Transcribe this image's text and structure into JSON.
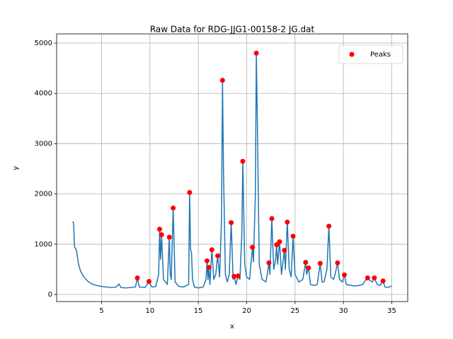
{
  "chart_data": {
    "type": "line",
    "title": "Raw Data for RDG-JJG1-00158-2 JG.dat",
    "x_label": "x",
    "y_label": "y",
    "xlim": [
      0.35,
      36.65
    ],
    "ylim": [
      -140,
      5183
    ],
    "xticks": [
      5,
      10,
      15,
      20,
      25,
      30,
      35
    ],
    "yticks": [
      0,
      1000,
      2000,
      3000,
      4000,
      5000
    ],
    "grid": true,
    "legend": "upper right",
    "series": [
      {
        "type": "line",
        "color": "#1f77b4",
        "x": [
          2.0,
          2.1,
          2.2,
          2.4,
          2.6,
          2.8,
          3.0,
          3.3,
          3.6,
          4.0,
          4.5,
          5.0,
          5.5,
          6.0,
          6.5,
          6.8,
          7.0,
          7.5,
          8.0,
          8.5,
          8.7,
          8.9,
          9.5,
          9.9,
          10.2,
          10.6,
          10.9,
          11.0,
          11.1,
          11.2,
          11.4,
          11.8,
          12.0,
          12.1,
          12.2,
          12.4,
          12.6,
          13.0,
          13.5,
          14.0,
          14.1,
          14.2,
          14.3,
          14.4,
          14.6,
          15.0,
          15.5,
          15.8,
          15.9,
          16.0,
          16.1,
          16.2,
          16.4,
          16.6,
          16.8,
          17.0,
          17.2,
          17.4,
          17.5,
          17.6,
          17.8,
          18.0,
          18.2,
          18.4,
          18.6,
          18.7,
          18.9,
          19.1,
          19.3,
          19.5,
          19.6,
          19.8,
          20.0,
          20.3,
          20.6,
          20.7,
          20.9,
          21.0,
          21.1,
          21.3,
          21.6,
          22.0,
          22.3,
          22.4,
          22.6,
          22.8,
          23.0,
          23.1,
          23.2,
          23.4,
          23.6,
          23.9,
          24.0,
          24.2,
          24.4,
          24.6,
          24.8,
          25.0,
          25.4,
          25.8,
          26.1,
          26.2,
          26.4,
          26.6,
          27.0,
          27.3,
          27.6,
          27.8,
          28.0,
          28.3,
          28.5,
          28.7,
          29.0,
          29.2,
          29.4,
          29.6,
          29.9,
          30.1,
          30.3,
          30.8,
          31.2,
          31.6,
          32.0,
          32.2,
          32.5,
          32.8,
          33.0,
          33.2,
          33.5,
          33.8,
          34.1,
          34.3,
          34.6,
          35.0
        ],
        "values": [
          1450,
          1420,
          950,
          880,
          620,
          480,
          400,
          320,
          260,
          210,
          180,
          160,
          150,
          140,
          150,
          210,
          140,
          130,
          140,
          150,
          330,
          150,
          140,
          260,
          150,
          160,
          400,
          1300,
          700,
          1190,
          300,
          200,
          1140,
          400,
          300,
          1720,
          250,
          160,
          150,
          200,
          2030,
          900,
          820,
          300,
          150,
          130,
          150,
          300,
          670,
          300,
          540,
          200,
          890,
          300,
          400,
          770,
          350,
          1500,
          4260,
          2500,
          400,
          250,
          400,
          1430,
          300,
          360,
          200,
          370,
          300,
          1200,
          2650,
          600,
          350,
          300,
          940,
          650,
          2000,
          4800,
          3500,
          600,
          300,
          250,
          630,
          400,
          1510,
          500,
          700,
          990,
          600,
          1050,
          400,
          880,
          500,
          1440,
          500,
          350,
          1160,
          400,
          250,
          300,
          640,
          400,
          530,
          200,
          180,
          200,
          620,
          250,
          250,
          500,
          1360,
          350,
          300,
          450,
          630,
          300,
          250,
          390,
          200,
          180,
          170,
          180,
          200,
          260,
          330,
          270,
          250,
          330,
          200,
          180,
          270,
          150,
          140,
          170
        ]
      },
      {
        "type": "scatter",
        "name": "Peaks",
        "color": "#ff0000",
        "x": [
          8.7,
          9.9,
          11.0,
          11.2,
          12.0,
          12.4,
          14.1,
          15.9,
          16.1,
          16.4,
          17.0,
          17.5,
          18.4,
          18.7,
          19.1,
          19.6,
          20.6,
          21.0,
          22.3,
          22.6,
          23.1,
          23.4,
          23.9,
          24.2,
          24.8,
          26.1,
          26.4,
          27.6,
          28.5,
          29.4,
          30.1,
          32.5,
          33.2,
          34.1
        ],
        "values": [
          330,
          260,
          1300,
          1190,
          1140,
          1720,
          2030,
          670,
          540,
          890,
          770,
          4260,
          1430,
          360,
          370,
          2650,
          940,
          4800,
          630,
          1510,
          990,
          1050,
          880,
          1440,
          1160,
          640,
          530,
          620,
          1360,
          630,
          390,
          330,
          330,
          270
        ]
      }
    ]
  }
}
